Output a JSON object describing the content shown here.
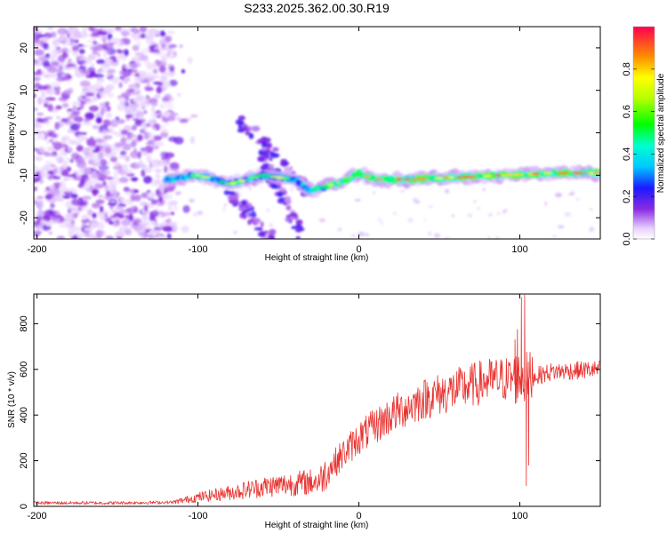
{
  "title": "S233.2025.362.00.30.R19",
  "chart_data": [
    {
      "type": "heatmap",
      "title": "",
      "xlabel": "Height of straight line (km)",
      "ylabel": "Frequency (Hz)",
      "xlim": [
        -202,
        150
      ],
      "ylim": [
        -25,
        25
      ],
      "xticks": [
        -200,
        -100,
        0,
        100
      ],
      "xtick_labels": [
        "-200",
        "-100",
        "0",
        "100"
      ],
      "yticks": [
        -20,
        -10,
        0,
        10,
        20
      ],
      "ytick_labels": [
        "-20",
        "-10",
        "0",
        "10",
        "20"
      ],
      "colorbar": {
        "label": "Normalized spectral amplitude",
        "range": [
          0,
          1
        ],
        "ticks": [
          0,
          0.2,
          0.4,
          0.6,
          0.8
        ],
        "tick_labels": [
          "0.0",
          "0.2",
          "0.4",
          "0.6",
          "0.8"
        ]
      },
      "features": {
        "noise_region_x": [
          -202,
          -115
        ],
        "main_trace": [
          {
            "x": -120,
            "f": -11
          },
          {
            "x": -100,
            "f": -10
          },
          {
            "x": -80,
            "f": -12
          },
          {
            "x": -60,
            "f": -10
          },
          {
            "x": -40,
            "f": -11
          },
          {
            "x": -30,
            "f": -13.5
          },
          {
            "x": -20,
            "f": -12.5
          },
          {
            "x": -10,
            "f": -11.5
          },
          {
            "x": 0,
            "f": -9.5
          },
          {
            "x": 10,
            "f": -11
          },
          {
            "x": 30,
            "f": -11
          },
          {
            "x": 60,
            "f": -10.5
          },
          {
            "x": 90,
            "f": -10
          },
          {
            "x": 120,
            "f": -9.5
          },
          {
            "x": 150,
            "f": -9.5
          }
        ],
        "diagonal_streaks": [
          {
            "x0": -75,
            "f0": 3,
            "x1": -28,
            "f1": -14
          },
          {
            "x0": -80,
            "f0": -14,
            "x1": -55,
            "f1": -25
          },
          {
            "x0": -60,
            "f0": -5,
            "x1": -35,
            "f1": -25
          }
        ]
      }
    },
    {
      "type": "line",
      "title": "",
      "xlabel": "Height of straight line (km)",
      "ylabel": "SNR (10 * v/v)",
      "xlim": [
        -202,
        150
      ],
      "ylim": [
        0,
        930
      ],
      "xticks": [
        -200,
        -100,
        0,
        100
      ],
      "xtick_labels": [
        "-200",
        "-100",
        "0",
        "100"
      ],
      "yticks": [
        0,
        200,
        400,
        600,
        800
      ],
      "ytick_labels": [
        "0",
        "200",
        "400",
        "600",
        "800"
      ],
      "series": [
        {
          "name": "SNR",
          "color": "#e8322f",
          "trend": [
            {
              "x": -202,
              "y": 15
            },
            {
              "x": -150,
              "y": 15
            },
            {
              "x": -115,
              "y": 18
            },
            {
              "x": -100,
              "y": 40
            },
            {
              "x": -80,
              "y": 60
            },
            {
              "x": -60,
              "y": 85
            },
            {
              "x": -40,
              "y": 100
            },
            {
              "x": -25,
              "y": 110
            },
            {
              "x": -15,
              "y": 190
            },
            {
              "x": 0,
              "y": 300
            },
            {
              "x": 20,
              "y": 400
            },
            {
              "x": 40,
              "y": 470
            },
            {
              "x": 60,
              "y": 510
            },
            {
              "x": 80,
              "y": 550
            },
            {
              "x": 95,
              "y": 560
            },
            {
              "x": 105,
              "y": 560
            },
            {
              "x": 120,
              "y": 590
            },
            {
              "x": 150,
              "y": 600
            }
          ],
          "spikes": [
            {
              "x": 97,
              "y": 730
            },
            {
              "x": 98.5,
              "y": 775
            },
            {
              "x": 101,
              "y": 915
            },
            {
              "x": 103,
              "y": 925
            },
            {
              "x": 104,
              "y": 90
            },
            {
              "x": 105.5,
              "y": 180
            }
          ]
        }
      ]
    }
  ]
}
